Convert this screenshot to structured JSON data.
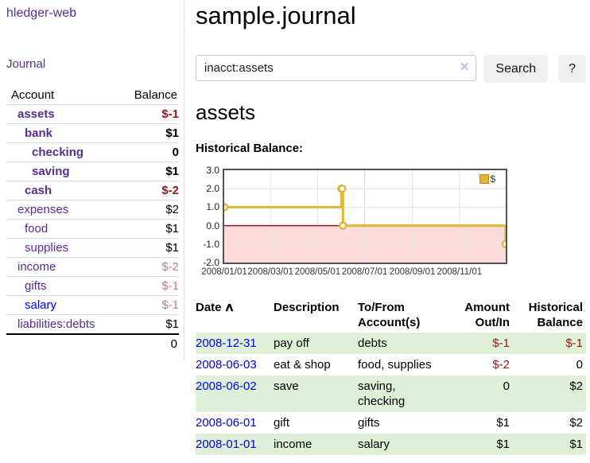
{
  "colors": {
    "purple": "#552e91",
    "blue": "#0000ee",
    "neg_strong": "#9d1616",
    "neg_muted": "#c08383",
    "stripe": "#dff0d8",
    "chart_line": "#e3b636",
    "chart_negative_region": "#fbdada",
    "chart_zero_line": "#8b1a1a",
    "chart_grid": "#e2e2e2",
    "chart_border": "#545454"
  },
  "app": {
    "title": "hledger-web"
  },
  "sidebar": {
    "journal_label": "Journal",
    "headers": {
      "account": "Account",
      "balance": "Balance"
    },
    "accounts": [
      {
        "name": "assets",
        "depth": 1,
        "style": "matched",
        "balance": "$-1",
        "bstyle": "neg-strong"
      },
      {
        "name": "bank",
        "depth": 2,
        "style": "matched",
        "balance": "$1",
        "bstyle": "strong"
      },
      {
        "name": "checking",
        "depth": 3,
        "style": "matched",
        "balance": "0",
        "bstyle": "strong"
      },
      {
        "name": "saving",
        "depth": 3,
        "style": "matched",
        "balance": "$1",
        "bstyle": "strong"
      },
      {
        "name": "cash",
        "depth": 2,
        "style": "matched",
        "balance": "$-2",
        "bstyle": "neg-strong"
      },
      {
        "name": "expenses",
        "depth": 1,
        "style": "normal",
        "balance": "$2",
        "bstyle": "plain"
      },
      {
        "name": "food",
        "depth": 2,
        "style": "normal",
        "balance": "$1",
        "bstyle": "plain"
      },
      {
        "name": "supplies",
        "depth": 2,
        "style": "normal",
        "balance": "$1",
        "bstyle": "plain"
      },
      {
        "name": "income",
        "depth": 1,
        "style": "normal",
        "balance": "$-2",
        "bstyle": "neg-muted"
      },
      {
        "name": "gifts",
        "depth": 2,
        "style": "normal",
        "balance": "$-1",
        "bstyle": "neg-muted"
      },
      {
        "name": "salary",
        "depth": 2,
        "style": "unvisited",
        "balance": "$-1",
        "bstyle": "neg-muted"
      },
      {
        "name": "liabilities:debts",
        "depth": 1,
        "style": "normal",
        "balance": "$1",
        "bstyle": "plain"
      }
    ],
    "total": "0"
  },
  "main": {
    "title": "sample.journal",
    "search": {
      "value": "inacct:assets",
      "clear_icon": "✕",
      "button_label": "Search",
      "help_label": "?"
    },
    "account_heading": "assets",
    "chart_heading": "Historical Balance:"
  },
  "chart_data": {
    "type": "line",
    "title": "Historical Balance",
    "step": "after",
    "x_domain": [
      "2008-01-01",
      "2008-12-31"
    ],
    "ylim": [
      -2,
      3
    ],
    "y_ticks": [
      {
        "label": "3.0",
        "value": 3
      },
      {
        "label": "2.0",
        "value": 2
      },
      {
        "label": "1.0",
        "value": 1
      },
      {
        "label": "0.0",
        "value": 0
      },
      {
        "label": "-1.0",
        "value": -1
      },
      {
        "label": "-2.0",
        "value": -2
      }
    ],
    "x_ticks": [
      {
        "label": "2008/01/01",
        "date": "2008-01-01"
      },
      {
        "label": "2008/03/01",
        "date": "2008-03-01"
      },
      {
        "label": "2008/05/01",
        "date": "2008-05-01"
      },
      {
        "label": "2008/07/01",
        "date": "2008-07-01"
      },
      {
        "label": "2008/09/01",
        "date": "2008-09-01"
      },
      {
        "label": "2008/11/01",
        "date": "2008-11-01"
      }
    ],
    "series": [
      {
        "name": "$",
        "points": [
          {
            "date": "2008-01-01",
            "value": 1
          },
          {
            "date": "2008-06-01",
            "value": 2
          },
          {
            "date": "2008-06-02",
            "value": 2
          },
          {
            "date": "2008-06-03",
            "value": 0
          },
          {
            "date": "2008-12-31",
            "value": -1
          }
        ]
      }
    ],
    "legend": {
      "label": "$",
      "position": "top-right"
    },
    "grid": true,
    "negative_region_fill": true
  },
  "register": {
    "headers": {
      "date": "Date",
      "description": "Description",
      "accounts_line1": "To/From",
      "accounts_line2": "Account(s)",
      "amount_line1": "Amount",
      "amount_line2": "Out/In",
      "balance_line1": "Historical",
      "balance_line2": "Balance"
    },
    "sort_icon": "∧",
    "rows": [
      {
        "date": "2008-12-31",
        "description": "pay off",
        "accounts": "debts",
        "amount": "$-1",
        "amount_neg": true,
        "balance": "$-1",
        "balance_neg": true,
        "stripe": true
      },
      {
        "date": "2008-06-03",
        "description": "eat & shop",
        "accounts": "food, supplies",
        "amount": "$-2",
        "amount_neg": true,
        "balance": "0",
        "balance_neg": false,
        "stripe": false
      },
      {
        "date": "2008-06-02",
        "description": "save",
        "accounts": "saving,\nchecking",
        "amount": "0",
        "amount_neg": false,
        "balance": "$2",
        "balance_neg": false,
        "stripe": true
      },
      {
        "date": "2008-06-01",
        "description": "gift",
        "accounts": "gifts",
        "amount": "$1",
        "amount_neg": false,
        "balance": "$2",
        "balance_neg": false,
        "stripe": false
      },
      {
        "date": "2008-01-01",
        "description": "income",
        "accounts": "salary",
        "amount": "$1",
        "amount_neg": false,
        "balance": "$1",
        "balance_neg": false,
        "stripe": true
      }
    ]
  }
}
